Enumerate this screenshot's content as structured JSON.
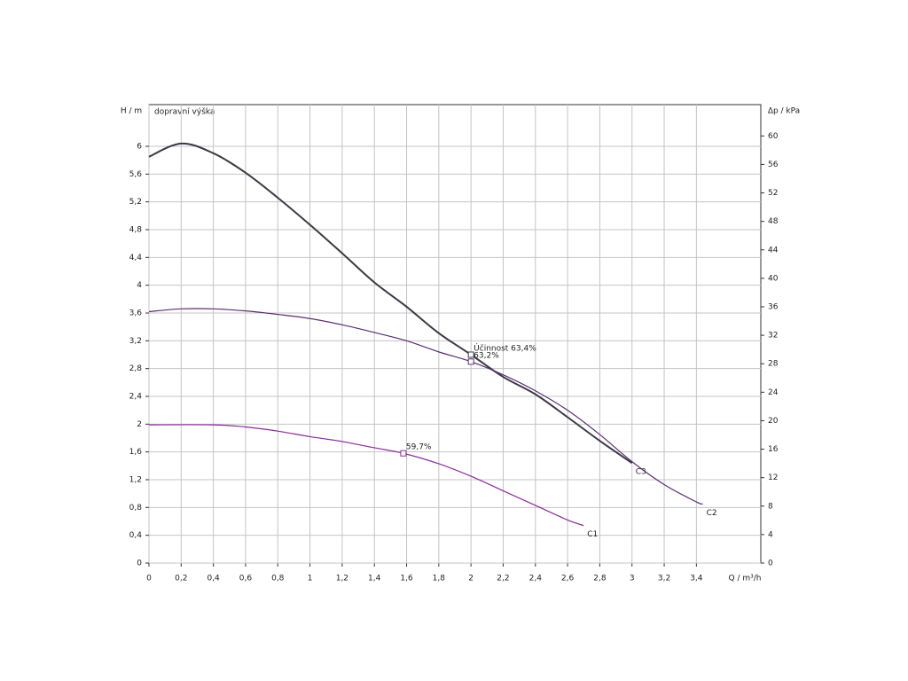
{
  "chart_data": {
    "type": "line",
    "y_label": "H / m",
    "y_desc": "dopravní výška",
    "x_label": "Q / m³/h",
    "y2_label": "Δp / kPa",
    "xlim": [
      0,
      3.8
    ],
    "ylim": [
      0,
      6.6
    ],
    "y2lim": [
      0,
      64.4
    ],
    "grid": true,
    "xticks": [
      0,
      {
        "value": 0.2,
        "label": "0,2"
      },
      {
        "value": 0.4,
        "label": "0,4"
      },
      {
        "value": 0.6,
        "label": "0,6"
      },
      {
        "value": 0.8,
        "label": "0,8"
      },
      1,
      {
        "value": 1.2,
        "label": "1,2"
      },
      {
        "value": 1.4,
        "label": "1,4"
      },
      {
        "value": 1.6,
        "label": "1,6"
      },
      {
        "value": 1.8,
        "label": "1,8"
      },
      2,
      {
        "value": 2.2,
        "label": "2,2"
      },
      {
        "value": 2.4,
        "label": "2,4"
      },
      {
        "value": 2.6,
        "label": "2,6"
      },
      {
        "value": 2.8,
        "label": "2,8"
      },
      3,
      {
        "value": 3.2,
        "label": "3,2"
      },
      {
        "value": 3.4,
        "label": "3,4"
      }
    ],
    "yticks": [
      0,
      {
        "value": 0.4,
        "label": "0,4"
      },
      {
        "value": 0.8,
        "label": "0,8"
      },
      {
        "value": 1.2,
        "label": "1,2"
      },
      {
        "value": 1.6,
        "label": "1,6"
      },
      2,
      {
        "value": 2.4,
        "label": "2,4"
      },
      {
        "value": 2.8,
        "label": "2,8"
      },
      {
        "value": 3.2,
        "label": "3,2"
      },
      {
        "value": 3.6,
        "label": "3,6"
      },
      4,
      {
        "value": 4.4,
        "label": "4,4"
      },
      {
        "value": 4.8,
        "label": "4,8"
      },
      {
        "value": 5.2,
        "label": "5,2"
      },
      {
        "value": 5.6,
        "label": "5,6"
      },
      6
    ],
    "y2ticks": [
      0,
      4,
      8,
      12,
      16,
      20,
      24,
      28,
      32,
      36,
      40,
      44,
      48,
      52,
      56,
      60
    ],
    "series": [
      {
        "name": "C3",
        "color": "#3a3a46",
        "x": [
          0,
          0.2,
          0.4,
          0.6,
          0.8,
          1.0,
          1.2,
          1.4,
          1.6,
          1.8,
          2.0,
          2.2,
          2.4,
          2.6,
          2.8,
          3.0
        ],
        "values": [
          5.85,
          6.04,
          5.9,
          5.62,
          5.26,
          4.87,
          4.46,
          4.04,
          3.69,
          3.31,
          3.0,
          2.68,
          2.43,
          2.1,
          1.76,
          1.44
        ]
      },
      {
        "name": "C2",
        "color": "#5b2e72",
        "x": [
          0,
          0.2,
          0.4,
          0.6,
          0.8,
          1.0,
          1.2,
          1.4,
          1.6,
          1.8,
          2.0,
          2.2,
          2.4,
          2.6,
          2.8,
          3.0,
          3.2,
          3.4,
          3.44
        ],
        "values": [
          3.62,
          3.66,
          3.66,
          3.63,
          3.58,
          3.52,
          3.43,
          3.32,
          3.2,
          3.04,
          2.9,
          2.71,
          2.48,
          2.2,
          1.85,
          1.46,
          1.13,
          0.88,
          0.85
        ]
      },
      {
        "name": "C1",
        "color": "#8a2b9c",
        "x": [
          0,
          0.4,
          0.6,
          0.8,
          1.0,
          1.2,
          1.4,
          1.58,
          1.8,
          2.0,
          2.2,
          2.4,
          2.6,
          2.7
        ],
        "values": [
          1.99,
          1.99,
          1.96,
          1.9,
          1.82,
          1.75,
          1.66,
          1.58,
          1.43,
          1.25,
          1.04,
          0.83,
          0.62,
          0.54
        ]
      }
    ],
    "points": [
      {
        "x": 2.0,
        "y": 3.0,
        "label": "Účinnost 63,4%",
        "color": "#3a3a46"
      },
      {
        "x": 2.0,
        "y": 2.9,
        "label": "63,2%",
        "color": "#5b2e72"
      },
      {
        "x": 1.58,
        "y": 1.58,
        "label": "59,7%",
        "color": "#8a2b9c"
      }
    ]
  }
}
